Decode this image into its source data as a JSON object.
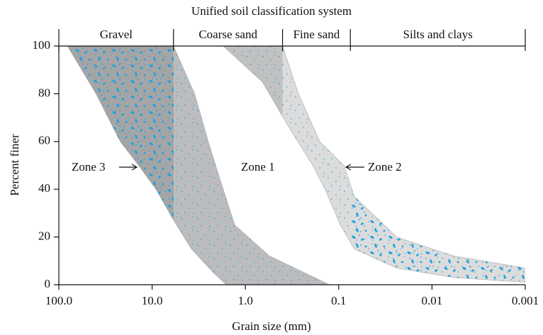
{
  "chart_data": {
    "type": "band",
    "title": "Unified soil classification system",
    "classes": [
      "Gravel",
      "Coarse sand",
      "Fine sand",
      "Silts and clays"
    ],
    "class_bounds": [
      100,
      5.9,
      0.4,
      0.075,
      0.001
    ],
    "xlabel": "Grain size (mm)",
    "ylabel": "Percent finer",
    "xscale": "log",
    "xlim": [
      100,
      0.001
    ],
    "xticks": [
      {
        "value": 100,
        "label": "100.0"
      },
      {
        "value": 10,
        "label": "10.0"
      },
      {
        "value": 1,
        "label": "1.0"
      },
      0.1,
      0.01,
      0.001
    ],
    "ylim": [
      0,
      100
    ],
    "yticks": [
      0,
      20,
      40,
      60,
      80,
      100
    ],
    "series": [
      {
        "x": [
          81,
          40,
          22,
          14,
          9.1,
          5.9,
          3.8,
          2.2,
          1.6
        ],
        "values": [
          100,
          80,
          60,
          50,
          40,
          27,
          15,
          5,
          0
        ]
      },
      {
        "x": [
          5.9,
          3.5,
          2.5,
          1.9,
          1.3,
          0.55,
          0.125
        ],
        "values": [
          100,
          80,
          60,
          45,
          25,
          12,
          0
        ]
      },
      {
        "x": [
          1.73,
          0.66,
          0.33,
          0.19,
          0.14,
          0.096,
          0.068,
          0.024,
          0.0058,
          0.001
        ],
        "values": [
          100,
          85,
          65,
          50,
          40,
          25,
          15,
          7,
          3,
          1
        ]
      },
      {
        "x": [
          0.4,
          0.27,
          0.16,
          0.088,
          0.068,
          0.024,
          0.0058,
          0.001
        ],
        "values": [
          100,
          80,
          60,
          50,
          37,
          20,
          12,
          7
        ]
      }
    ],
    "band_colors": [
      "#bcbcbe",
      "#ffffff",
      "#dcdcdc"
    ],
    "annotations": [
      "Zone 3",
      "Zone 1",
      "Zone 2"
    ]
  }
}
